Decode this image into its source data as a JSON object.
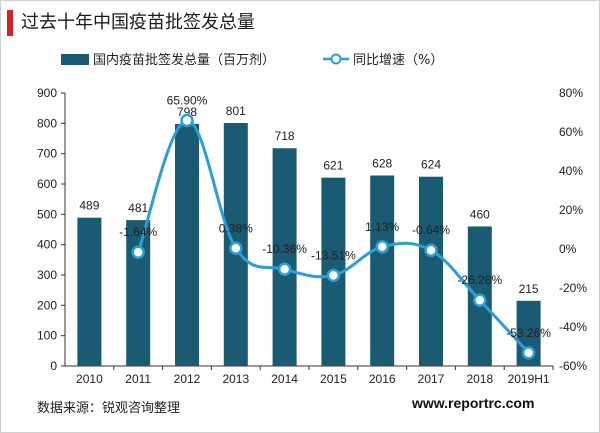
{
  "title": "过去十年中国疫苗批签发总量",
  "source": "数据来源：锐观咨询整理",
  "watermark": "www.reportrc.com",
  "chart_data": {
    "type": "bar+line",
    "categories": [
      "2010",
      "2011",
      "2012",
      "2013",
      "2014",
      "2015",
      "2016",
      "2017",
      "2018",
      "2019H1"
    ],
    "series": [
      {
        "name": "国内疫苗批签发总量（百万剂）",
        "type": "bar",
        "axis": "left",
        "color": "#1a5a73",
        "values": [
          489,
          481,
          798,
          801,
          718,
          621,
          628,
          624,
          460,
          215
        ],
        "labels": [
          "489",
          "481",
          "798",
          "801",
          "718",
          "621",
          "628",
          "624",
          "460",
          "215"
        ]
      },
      {
        "name": "同比增速（%）",
        "type": "line",
        "axis": "right",
        "color": "#2a9fd6",
        "values": [
          null,
          -1.64,
          65.9,
          0.38,
          -10.36,
          -13.51,
          1.13,
          -0.64,
          -26.28,
          -53.26
        ],
        "labels": [
          "",
          "-1.64%",
          "65.90%",
          "0.38%",
          "-10.36%",
          "-13.51%",
          "1.13%",
          "-0.64%",
          "-26.28%",
          "-53.26%"
        ]
      }
    ],
    "left_axis": {
      "min": 0,
      "max": 900,
      "step": 100,
      "ticks": [
        "0",
        "100",
        "200",
        "300",
        "400",
        "500",
        "600",
        "700",
        "800",
        "900"
      ]
    },
    "right_axis": {
      "min": -60,
      "max": 80,
      "step": 20,
      "ticks": [
        "-60%",
        "-40%",
        "-20%",
        "0%",
        "20%",
        "40%",
        "60%",
        "80%"
      ]
    },
    "legend_position": "top",
    "grid": false
  }
}
